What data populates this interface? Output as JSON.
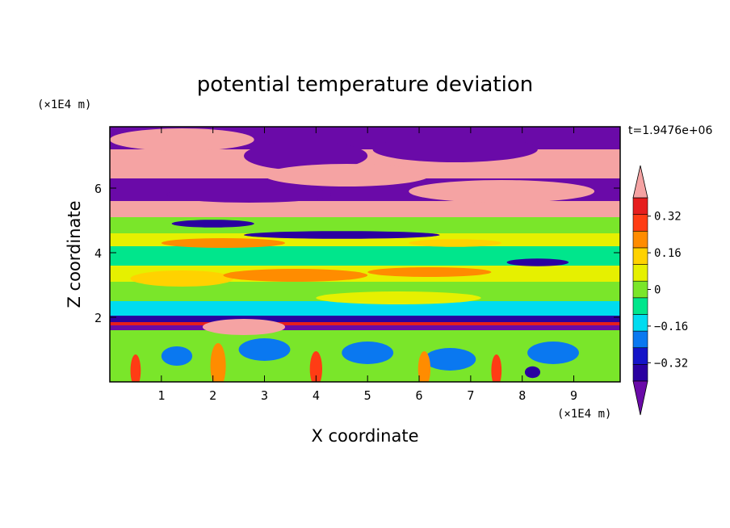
{
  "chart_data": {
    "type": "heatmap",
    "title": "potential temperature deviation",
    "xlabel": "X coordinate",
    "ylabel": "Z coordinate",
    "x_unit": "(×1E4 m)",
    "y_unit": "(×1E4 m)",
    "time_label": "t=1.9476e+06",
    "xlim": [
      0,
      9.9
    ],
    "ylim": [
      0,
      7.9
    ],
    "x_ticks": [
      1,
      2,
      3,
      4,
      5,
      6,
      7,
      8,
      9
    ],
    "y_ticks": [
      2,
      4,
      6
    ],
    "colorbar": {
      "levels": [
        -0.48,
        -0.4,
        -0.32,
        -0.24,
        -0.16,
        -0.08,
        0,
        0.08,
        0.16,
        0.24,
        0.32,
        0.4,
        0.48
      ],
      "labeled_levels": [
        -0.32,
        -0.16,
        0,
        0.16,
        0.32
      ],
      "level_labels": [
        "−0.32",
        "−0.16",
        "0",
        "0.16",
        "0.32"
      ],
      "colors": [
        "#6a0aa8",
        "#2a00a0",
        "#1414c8",
        "#0a78f0",
        "#00dcf0",
        "#00e68c",
        "#7ae62a",
        "#e6f000",
        "#ffd200",
        "#ff8c00",
        "#ff3c14",
        "#e61e1e",
        "#f5a3a3"
      ],
      "extend": "both"
    }
  }
}
